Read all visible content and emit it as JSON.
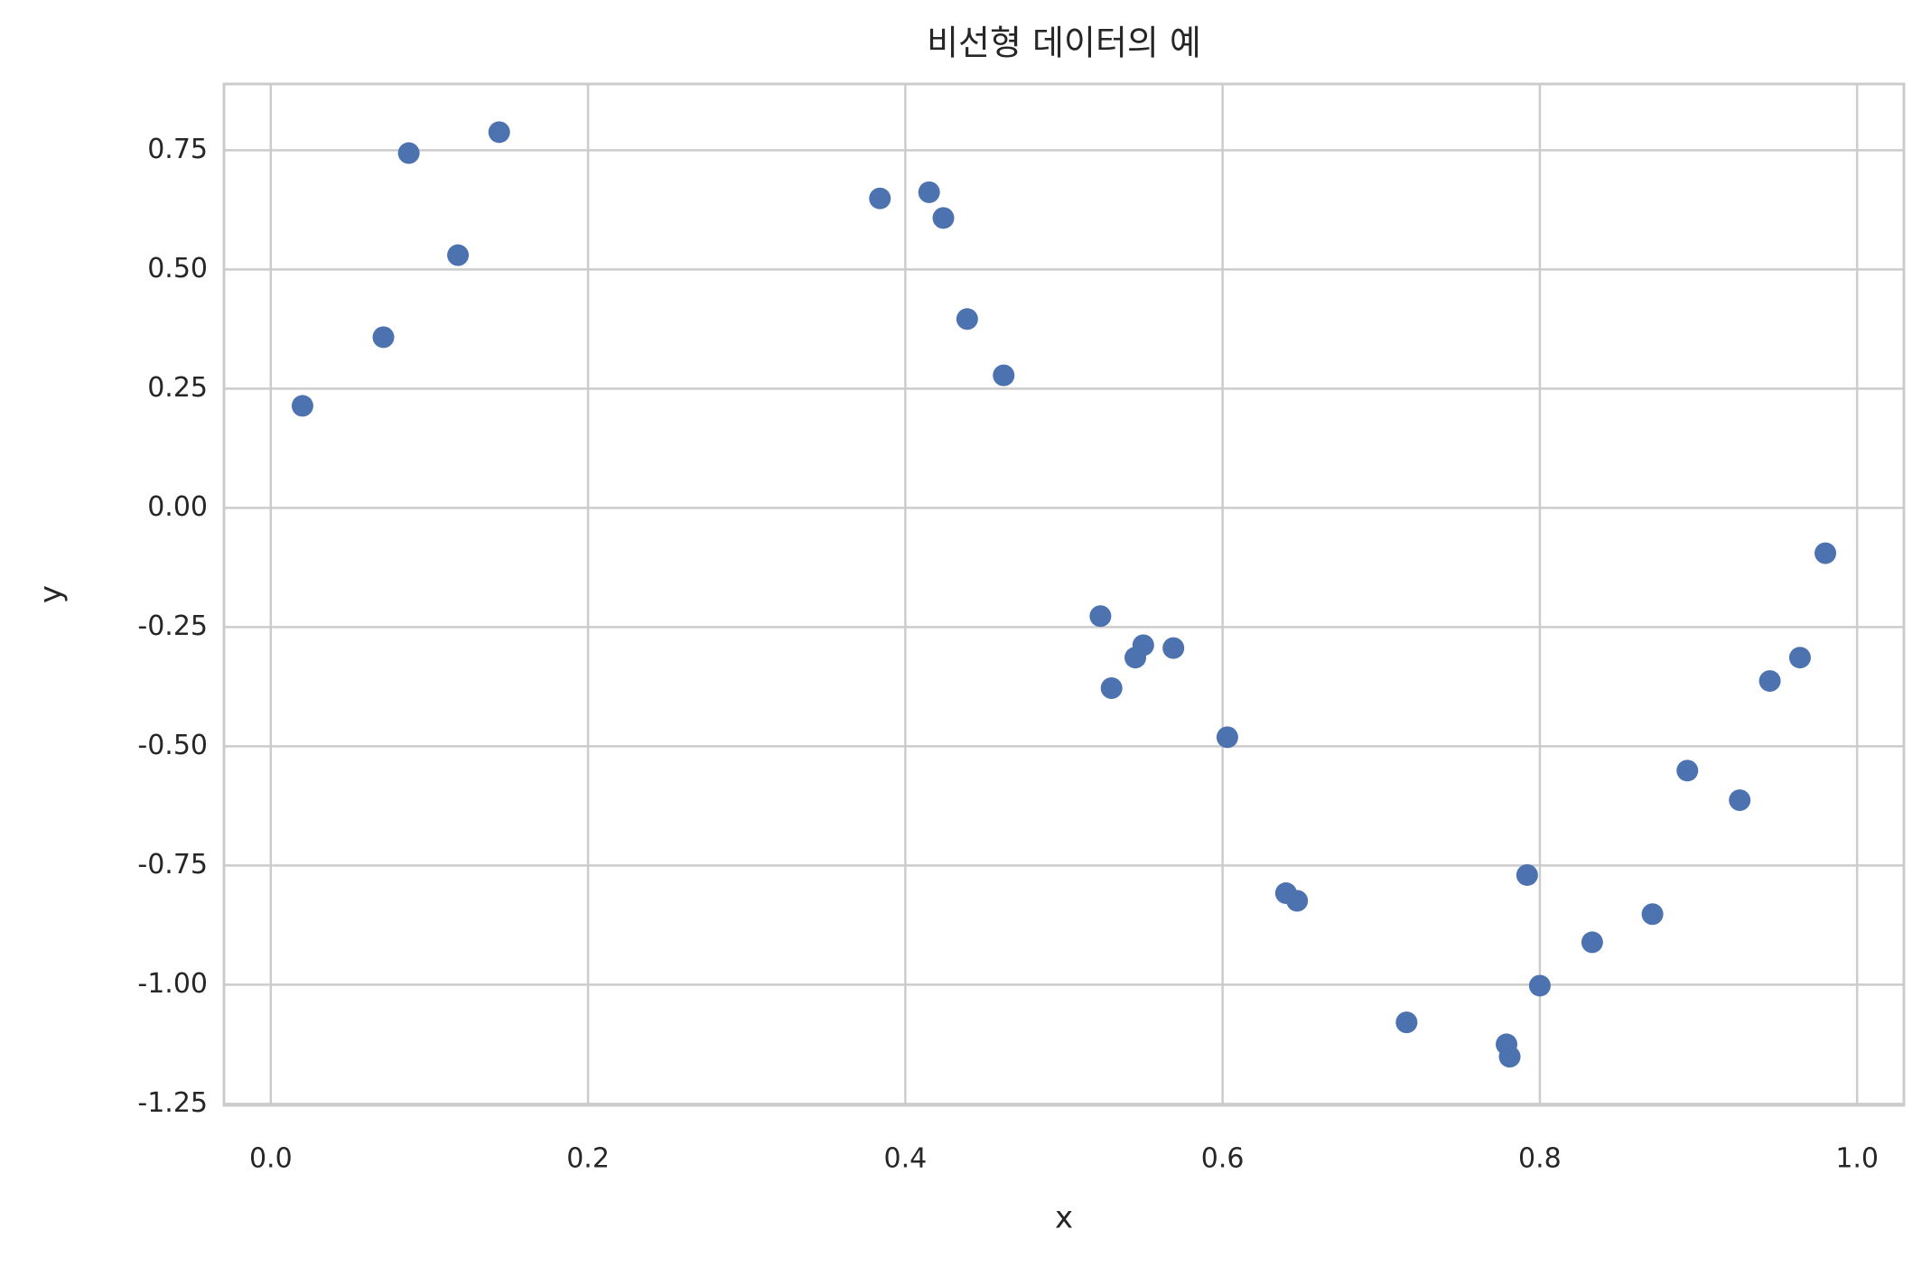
{
  "chart_data": {
    "type": "scatter",
    "title": "비선형 데이터의 예",
    "x_label": "x",
    "y_label": "y",
    "color": "#4c72b0",
    "grid": true,
    "xlim": [
      -0.0295,
      1.0295
    ],
    "ylim": [
      -1.253,
      0.889
    ],
    "xticks": [
      {
        "value": 0,
        "label": "0.0"
      },
      {
        "value": 0.2,
        "label": "0.2"
      },
      {
        "value": 0.4,
        "label": "0.4"
      },
      {
        "value": 0.6,
        "label": "0.6"
      },
      {
        "value": 0.8,
        "label": "0.8"
      },
      {
        "value": 1,
        "label": "1.0"
      }
    ],
    "yticks": [
      {
        "value": 0.75,
        "label": "0.75"
      },
      {
        "value": 0.5,
        "label": "0.50"
      },
      {
        "value": 0.25,
        "label": "0.25"
      },
      {
        "value": 0,
        "label": "0.00"
      },
      {
        "value": -0.25,
        "label": "-0.25"
      },
      {
        "value": -0.5,
        "label": "-0.50"
      },
      {
        "value": -0.75,
        "label": "-0.75"
      },
      {
        "value": -1,
        "label": "-1.00"
      },
      {
        "value": -1.25,
        "label": "-1.25"
      }
    ],
    "x": [
      0.02,
      0.071,
      0.087,
      0.118,
      0.144,
      0.384,
      0.415,
      0.424,
      0.439,
      0.462,
      0.523,
      0.53,
      0.545,
      0.55,
      0.569,
      0.603,
      0.64,
      0.647,
      0.716,
      0.779,
      0.781,
      0.792,
      0.8,
      0.833,
      0.871,
      0.893,
      0.926,
      0.945,
      0.964,
      0.98
    ],
    "y": [
      0.214,
      0.358,
      0.744,
      0.53,
      0.788,
      0.649,
      0.662,
      0.608,
      0.396,
      0.278,
      -0.227,
      -0.378,
      -0.314,
      -0.288,
      -0.294,
      -0.481,
      -0.808,
      -0.824,
      -1.079,
      -1.125,
      -1.151,
      -0.77,
      -1.002,
      -0.911,
      -0.852,
      -0.551,
      -0.613,
      -0.363,
      -0.314,
      -0.095
    ]
  }
}
